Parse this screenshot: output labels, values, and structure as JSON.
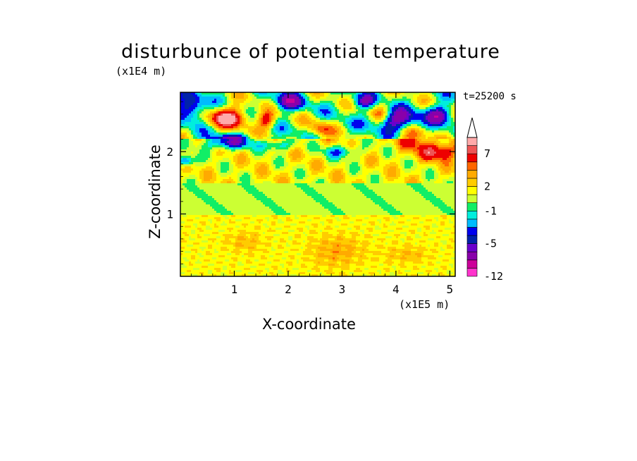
{
  "chart_data": {
    "type": "heatmap",
    "title": "disturbunce of potential temperature",
    "annotation": "t=25200 s",
    "xlabel": "X-coordinate",
    "ylabel": "Z-coordinate",
    "x_unit": "(x1E5 m)",
    "y_unit": "(x1E4 m)",
    "xlim": [
      0,
      5.1
    ],
    "ylim": [
      0,
      2.95
    ],
    "x_ticks": [
      "1",
      "2",
      "3",
      "4",
      "5"
    ],
    "y_ticks": [
      "1",
      "2"
    ],
    "colorbar": {
      "levels": [
        -12,
        -11,
        -8,
        -6,
        -5,
        -4,
        -3,
        -2,
        -1,
        0,
        1,
        2,
        3,
        4,
        5,
        7,
        8,
        9
      ],
      "tick_labels": [
        "-12",
        "-5",
        "-1",
        "2",
        "7"
      ],
      "colors": [
        "#ff33cc",
        "#cc0099",
        "#8800aa",
        "#6a00cc",
        "#0022aa",
        "#0000ee",
        "#00bbff",
        "#00eedd",
        "#11ee66",
        "#ccff33",
        "#ffff00",
        "#ffcc00",
        "#ffaa00",
        "#ff6600",
        "#ee0000",
        "#ee5555",
        "#ffaaaa"
      ],
      "extend": "max"
    },
    "field_description_by_height": [
      {
        "z_range": [
          0,
          1.0
        ],
        "dominant": [
          1,
          2
        ]
      },
      {
        "z_range": [
          1.0,
          1.5
        ],
        "dominant": [
          -1,
          0
        ]
      },
      {
        "z_range": [
          1.5,
          2.2
        ],
        "dominant": [
          -1,
          3
        ]
      },
      {
        "z_range": [
          2.2,
          2.95
        ],
        "dominant": [
          -5,
          7
        ]
      }
    ]
  }
}
